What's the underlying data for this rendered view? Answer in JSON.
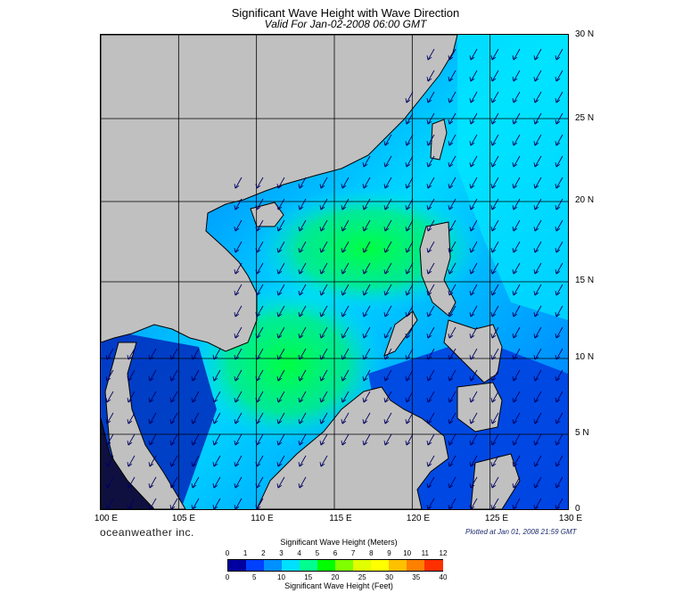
{
  "title": "Significant Wave Height with Wave Direction",
  "subtitle": "Valid For Jan-02-2008 06:00 GMT",
  "longitude_labels": [
    "100 E",
    "105 E",
    "110 E",
    "115 E",
    "120 E",
    "125 E",
    "130 E"
  ],
  "latitude_labels": [
    "30 N",
    "25 N",
    "20 N",
    "15 N",
    "10 N",
    "5 N",
    "0"
  ],
  "brand": "oceanweather inc.",
  "plotted": "Plotted at Jan 01, 2008 21:59 GMT",
  "colorbar": {
    "meters_title": "Significant Wave Height (Meters)",
    "meters_ticks": [
      "0",
      "1",
      "2",
      "3",
      "4",
      "5",
      "6",
      "7",
      "8",
      "9",
      "10",
      "11",
      "12"
    ],
    "feet_title": "Significant Wave Height (Feet)",
    "feet_ticks": [
      "0",
      "5",
      "10",
      "15",
      "20",
      "25",
      "30",
      "35",
      "40"
    ],
    "colors": [
      "#0000a0",
      "#0040ff",
      "#0090ff",
      "#00e0ff",
      "#00ff90",
      "#00ff00",
      "#80ff00",
      "#e0ff00",
      "#ffff00",
      "#ffc000",
      "#ff8000",
      "#ff3000"
    ]
  },
  "colors": {
    "land": "#c0c0c0",
    "grid": "#000000",
    "arrow": "#000060"
  },
  "wave_direction": "northeast"
}
